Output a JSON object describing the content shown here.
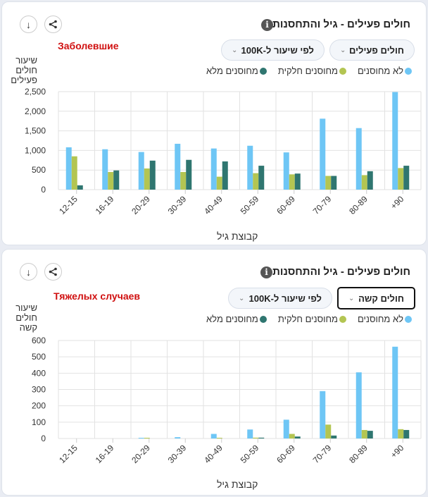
{
  "legend": [
    {
      "label": "לא מחוסנים",
      "color": "#6ec6f5"
    },
    {
      "label": "מחוסנים חלקית",
      "color": "#b3c552"
    },
    {
      "label": "מחוסנים מלא",
      "color": "#2f7670"
    }
  ],
  "icons": {
    "download": "download-icon",
    "share": "share-icon",
    "info": "info-icon",
    "chevron": "chevron-down-icon"
  },
  "glyphs": {
    "download": "↓",
    "info": "i",
    "chevron": "⌄"
  },
  "panels": [
    {
      "title": "חולים פעילים - גיל והתחסנות",
      "annotation": "Заболевшие",
      "dropdown_metric": "חולים פעילים",
      "dropdown_rate": "לפי שיעור ל-100K",
      "ylabel_lines": [
        "שיעור",
        "חולים",
        "פעילים"
      ],
      "xlabel": "קבוצת גיל"
    },
    {
      "title": "חולים פעילים - גיל והתחסנות",
      "annotation": "Тяжелых случаев",
      "dropdown_metric": "חולים קשה",
      "dropdown_rate": "לפי שיעור ל-100K",
      "ylabel_lines": [
        "שיעור",
        "חולים",
        "קשה"
      ],
      "xlabel": "קבוצת גיל"
    }
  ],
  "chart_data": [
    {
      "type": "bar",
      "title": "חולים פעילים - גיל והתחסנות",
      "xlabel": "קבוצת גיל",
      "ylabel": "שיעור חולים פעילים",
      "ylim": [
        0,
        2500
      ],
      "yticks": [
        0,
        500,
        1000,
        1500,
        2000,
        2500
      ],
      "ytick_labels": [
        "0",
        "500",
        "1,000",
        "1,500",
        "2,000",
        "2,500"
      ],
      "grid": true,
      "legend_position": "top-right",
      "categories": [
        "12-15",
        "16-19",
        "20-29",
        "30-39",
        "40-49",
        "50-59",
        "60-69",
        "70-79",
        "80-89",
        "+90"
      ],
      "series": [
        {
          "name": "לא מחוסנים",
          "color": "#6ec6f5",
          "values": [
            1080,
            1030,
            960,
            1170,
            1050,
            1120,
            950,
            1810,
            1570,
            2490
          ]
        },
        {
          "name": "מחוסנים חלקית",
          "color": "#b3c552",
          "values": [
            850,
            450,
            540,
            450,
            330,
            420,
            390,
            350,
            370,
            550
          ]
        },
        {
          "name": "מחוסנים מלא",
          "color": "#2f7670",
          "values": [
            110,
            490,
            740,
            760,
            720,
            610,
            410,
            350,
            470,
            610
          ]
        }
      ]
    },
    {
      "type": "bar",
      "title": "חולים פעילים - גיל והתחסנות",
      "xlabel": "קבוצת גיל",
      "ylabel": "שיעור חולים קשה",
      "ylim": [
        0,
        600
      ],
      "yticks": [
        0,
        100,
        200,
        300,
        400,
        500,
        600
      ],
      "ytick_labels": [
        "0",
        "100",
        "200",
        "300",
        "400",
        "500",
        "600"
      ],
      "grid": true,
      "legend_position": "top-right",
      "categories": [
        "12-15",
        "16-19",
        "20-29",
        "30-39",
        "40-49",
        "50-59",
        "60-69",
        "70-79",
        "80-89",
        "+90"
      ],
      "series": [
        {
          "name": "לא מחוסנים",
          "color": "#6ec6f5",
          "values": [
            0,
            0,
            3,
            8,
            28,
            55,
            115,
            290,
            405,
            562
          ]
        },
        {
          "name": "מחוסנים חלקית",
          "color": "#b3c552",
          "values": [
            0,
            0,
            2,
            0,
            2,
            5,
            28,
            85,
            52,
            57
          ]
        },
        {
          "name": "מחוסנים מלא",
          "color": "#2f7670",
          "values": [
            0,
            0,
            0,
            0,
            0,
            5,
            12,
            18,
            47,
            52
          ]
        }
      ]
    }
  ]
}
